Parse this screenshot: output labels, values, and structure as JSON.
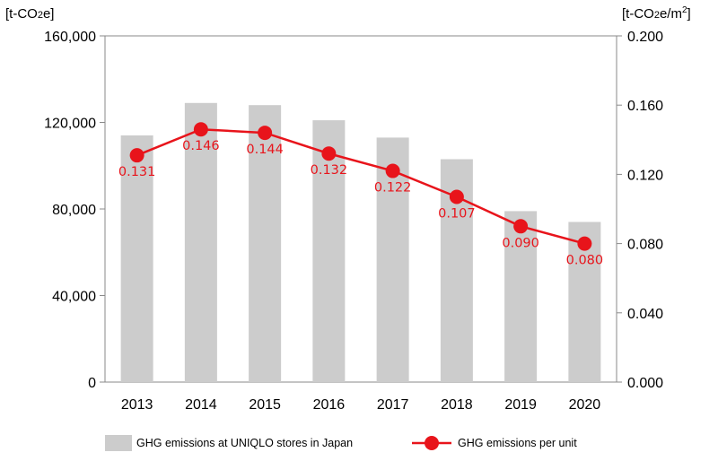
{
  "chart_data": {
    "type": "bar",
    "categories": [
      "2013",
      "2014",
      "2015",
      "2016",
      "2017",
      "2018",
      "2019",
      "2020"
    ],
    "series": [
      {
        "name": "GHG emissions at UNIQLO stores in Japan",
        "type": "bar",
        "axis": "left",
        "color": "#cccccc",
        "values": [
          114000,
          129000,
          128000,
          121000,
          113000,
          103000,
          79000,
          74000
        ]
      },
      {
        "name": "GHG emissions per unit",
        "type": "line",
        "axis": "right",
        "color": "#e8141b",
        "values": [
          0.131,
          0.146,
          0.144,
          0.132,
          0.122,
          0.107,
          0.09,
          0.08
        ],
        "labels": [
          "0.131",
          "0.146",
          "0.144",
          "0.132",
          "0.122",
          "0.107",
          "0.090",
          "0.080"
        ]
      }
    ],
    "yleft": {
      "unit_base": "[t-CO",
      "unit_sub": "2",
      "unit_tail": "e]",
      "ylim": [
        0,
        160000
      ],
      "ticks": [
        "0",
        "40,000",
        "80,000",
        "120,000",
        "160,000"
      ],
      "tick_values": [
        0,
        40000,
        80000,
        120000,
        160000
      ]
    },
    "yright": {
      "unit_base": "[t-CO",
      "unit_sub": "2",
      "unit_mid": "e/m",
      "unit_sup": "2",
      "unit_tail": "]",
      "ylim": [
        0,
        0.2
      ],
      "ticks": [
        "0.000",
        "0.040",
        "0.080",
        "0.120",
        "0.160",
        "0.200"
      ],
      "tick_values": [
        0,
        0.04,
        0.08,
        0.12,
        0.16,
        0.2
      ]
    },
    "grid": false,
    "legend_position": "bottom"
  }
}
